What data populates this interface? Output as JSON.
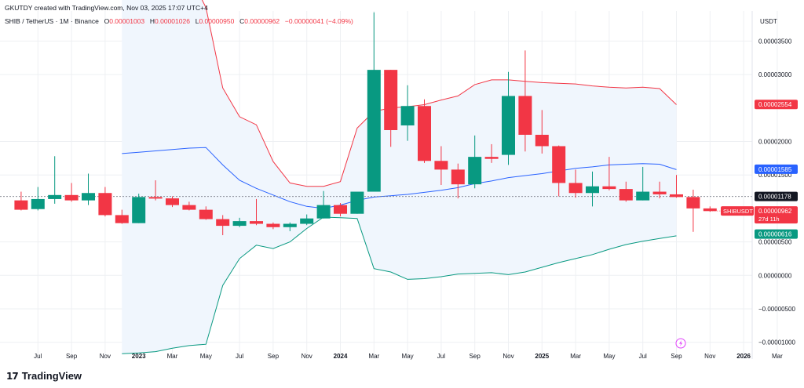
{
  "header": {
    "credit": "GKUTDY created with TradingView.com, Nov 03, 2025 17:07 UTC+4",
    "symbol": "SHIB / TetherUS · 1M · Binance",
    "o_label": "O",
    "o_value": "0.00001003",
    "h_label": "H",
    "h_value": "0.00001026",
    "l_label": "L",
    "l_value": "0.00000950",
    "c_label": "C",
    "c_value": "0.00000962",
    "change": "−0.00000041 (−4.09%)"
  },
  "brand": {
    "logo": "17",
    "name": "TradingView"
  },
  "event_icon": "lightning-icon",
  "colors": {
    "up": "#089981",
    "down": "#f23645",
    "upper_band": "#f23645",
    "middle_band": "#2962ff",
    "lower_band": "#089981",
    "band_fill": "#f0f6fd",
    "grid": "#eef0f3"
  },
  "chart_data": {
    "type": "candlestick",
    "symbol": "SHIBUSDT",
    "interval": "1M",
    "y_unit": "USDT",
    "ylim": [
      -1.25e-05,
      3.95e-05
    ],
    "y_ticks": [
      {
        "value": 3.5e-05,
        "label": "0.00003500"
      },
      {
        "value": 3e-05,
        "label": "0.00003000"
      },
      {
        "value": 2e-05,
        "label": "0.00002000"
      },
      {
        "value": 1.5e-05,
        "label": "0.00001500"
      },
      {
        "value": 5e-06,
        "label": "0.00000500"
      },
      {
        "value": 0.0,
        "label": "0.00000000"
      },
      {
        "value": -5e-06,
        "label": "−0.00000500"
      },
      {
        "value": -1e-05,
        "label": "−0.00001000"
      }
    ],
    "x_ticks": [
      "Jul",
      "Sep",
      "Nov",
      "2023",
      "Mar",
      "May",
      "Jul",
      "Sep",
      "Nov",
      "2024",
      "Mar",
      "May",
      "Jul",
      "Sep",
      "Nov",
      "2025",
      "Mar",
      "May",
      "Jul",
      "Sep",
      "Nov",
      "2026",
      "Mar"
    ],
    "x_tick_months": [
      1,
      3,
      5,
      7,
      9,
      11,
      13,
      15,
      17,
      19,
      21,
      23,
      25,
      27,
      29,
      31,
      33,
      35,
      37,
      39,
      41,
      43,
      45
    ],
    "bold_x_ticks": [
      "2023",
      "2024",
      "2025",
      "2026"
    ],
    "grid": true,
    "candles": [
      {
        "date": "2022-06",
        "o": 1.12e-05,
        "h": 1.25e-05,
        "l": 9.7e-06,
        "c": 9.8e-06
      },
      {
        "date": "2022-07",
        "o": 9.9e-06,
        "h": 1.32e-05,
        "l": 9.7e-06,
        "c": 1.14e-05
      },
      {
        "date": "2022-08",
        "o": 1.14e-05,
        "h": 1.78e-05,
        "l": 1.07e-05,
        "c": 1.2e-05
      },
      {
        "date": "2022-09",
        "o": 1.2e-05,
        "h": 1.38e-05,
        "l": 1.1e-05,
        "c": 1.12e-05
      },
      {
        "date": "2022-10",
        "o": 1.12e-05,
        "h": 1.52e-05,
        "l": 1.05e-05,
        "c": 1.23e-05
      },
      {
        "date": "2022-11",
        "o": 1.23e-05,
        "h": 1.32e-05,
        "l": 8.8e-06,
        "c": 9e-06
      },
      {
        "date": "2022-12",
        "o": 9e-06,
        "h": 9.8e-06,
        "l": 7.7e-06,
        "c": 7.8e-06
      },
      {
        "date": "2023-01",
        "o": 7.8e-06,
        "h": 1.22e-05,
        "l": 7.8e-06,
        "c": 1.17e-05
      },
      {
        "date": "2023-02",
        "o": 1.17e-05,
        "h": 1.42e-05,
        "l": 1.12e-05,
        "c": 1.15e-05
      },
      {
        "date": "2023-03",
        "o": 1.15e-05,
        "h": 1.18e-05,
        "l": 1.02e-05,
        "c": 1.05e-05
      },
      {
        "date": "2023-04",
        "o": 1.05e-05,
        "h": 1.1e-05,
        "l": 9.7e-06,
        "c": 9.8e-06
      },
      {
        "date": "2023-05",
        "o": 9.8e-06,
        "h": 1.03e-05,
        "l": 8.3e-06,
        "c": 8.4e-06
      },
      {
        "date": "2023-06",
        "o": 8.4e-06,
        "h": 9e-06,
        "l": 6e-06,
        "c": 7.4e-06
      },
      {
        "date": "2023-07",
        "o": 7.4e-06,
        "h": 8.6e-06,
        "l": 7.2e-06,
        "c": 8.1e-06
      },
      {
        "date": "2023-08",
        "o": 8.1e-06,
        "h": 1.14e-05,
        "l": 7.5e-06,
        "c": 7.7e-06
      },
      {
        "date": "2023-09",
        "o": 7.7e-06,
        "h": 7.9e-06,
        "l": 6.9e-06,
        "c": 7.2e-06
      },
      {
        "date": "2023-10",
        "o": 7.2e-06,
        "h": 7.9e-06,
        "l": 6.6e-06,
        "c": 7.7e-06
      },
      {
        "date": "2023-11",
        "o": 7.7e-06,
        "h": 9.1e-06,
        "l": 7.5e-06,
        "c": 8.5e-06
      },
      {
        "date": "2023-12",
        "o": 8.5e-06,
        "h": 1.26e-05,
        "l": 8.5e-06,
        "c": 1.05e-05
      },
      {
        "date": "2024-01",
        "o": 1.05e-05,
        "h": 1.08e-05,
        "l": 8.8e-06,
        "c": 9.2e-06
      },
      {
        "date": "2024-02",
        "o": 9.2e-06,
        "h": 1.23e-05,
        "l": 9.2e-06,
        "c": 1.25e-05
      },
      {
        "date": "2024-03",
        "o": 1.25e-05,
        "h": 3.93e-05,
        "l": 1.25e-05,
        "c": 3.07e-05
      },
      {
        "date": "2024-04",
        "o": 3.07e-05,
        "h": 3.07e-05,
        "l": 1.92e-05,
        "c": 2.17e-05
      },
      {
        "date": "2024-05",
        "o": 2.24e-05,
        "h": 2.84e-05,
        "l": 2.01e-05,
        "c": 2.53e-05
      },
      {
        "date": "2024-06",
        "o": 2.53e-05,
        "h": 2.63e-05,
        "l": 1.68e-05,
        "c": 1.71e-05
      },
      {
        "date": "2024-07",
        "o": 1.71e-05,
        "h": 1.93e-05,
        "l": 1.35e-05,
        "c": 1.58e-05
      },
      {
        "date": "2024-08",
        "o": 1.58e-05,
        "h": 1.67e-05,
        "l": 1.15e-05,
        "c": 1.36e-05
      },
      {
        "date": "2024-09",
        "o": 1.36e-05,
        "h": 2.09e-05,
        "l": 1.3e-05,
        "c": 1.77e-05
      },
      {
        "date": "2024-10",
        "o": 1.77e-05,
        "h": 1.96e-05,
        "l": 1.68e-05,
        "c": 1.74e-05
      },
      {
        "date": "2024-11",
        "o": 1.8e-05,
        "h": 3.04e-05,
        "l": 1.65e-05,
        "c": 2.68e-05
      },
      {
        "date": "2024-12",
        "o": 2.68e-05,
        "h": 3.36e-05,
        "l": 1.85e-05,
        "c": 2.1e-05
      },
      {
        "date": "2025-01",
        "o": 2.1e-05,
        "h": 2.47e-05,
        "l": 1.82e-05,
        "c": 1.93e-05
      },
      {
        "date": "2025-02",
        "o": 1.93e-05,
        "h": 1.94e-05,
        "l": 1.18e-05,
        "c": 1.38e-05
      },
      {
        "date": "2025-03",
        "o": 1.38e-05,
        "h": 1.58e-05,
        "l": 1.16e-05,
        "c": 1.23e-05
      },
      {
        "date": "2025-04",
        "o": 1.23e-05,
        "h": 1.55e-05,
        "l": 1.03e-05,
        "c": 1.33e-05
      },
      {
        "date": "2025-05",
        "o": 1.33e-05,
        "h": 1.77e-05,
        "l": 1.27e-05,
        "c": 1.29e-05
      },
      {
        "date": "2025-06",
        "o": 1.29e-05,
        "h": 1.4e-05,
        "l": 1.1e-05,
        "c": 1.12e-05
      },
      {
        "date": "2025-07",
        "o": 1.12e-05,
        "h": 1.62e-05,
        "l": 1.12e-05,
        "c": 1.25e-05
      },
      {
        "date": "2025-08",
        "o": 1.25e-05,
        "h": 1.4e-05,
        "l": 1.15e-05,
        "c": 1.21e-05
      },
      {
        "date": "2025-09",
        "o": 1.21e-05,
        "h": 1.5e-05,
        "l": 1.16e-05,
        "c": 1.17e-05
      },
      {
        "date": "2025-10",
        "o": 1.17e-05,
        "h": 1.28e-05,
        "l": 6.5e-06,
        "c": 1e-05
      },
      {
        "date": "2025-11",
        "o": 1e-05,
        "h": 1.03e-05,
        "l": 9.5e-06,
        "c": 9.6e-06
      }
    ],
    "bollinger": {
      "start_index": 6,
      "upper": [
        6.2e-05,
        6e-05,
        5.8e-05,
        5.1e-05,
        4.5e-05,
        4e-05,
        2.8e-05,
        2.37e-05,
        2.25e-05,
        1.7e-05,
        1.38e-05,
        1.33e-05,
        1.33e-05,
        1.4e-05,
        2.2e-05,
        2.45e-05,
        2.5e-05,
        2.52e-05,
        2.55e-05,
        2.62e-05,
        2.68e-05,
        2.85e-05,
        2.92e-05,
        2.92e-05,
        2.9e-05,
        2.88e-05,
        2.87e-05,
        2.86e-05,
        2.83e-05,
        2.81e-05,
        2.8e-05,
        2.81e-05,
        2.79e-05,
        2.55e-05
      ],
      "middle": [
        1.82e-05,
        1.84e-05,
        1.86e-05,
        1.88e-05,
        1.9e-05,
        1.91e-05,
        1.65e-05,
        1.42e-05,
        1.3e-05,
        1.2e-05,
        1.1e-05,
        1.03e-05,
        1e-05,
        1.05e-05,
        1.12e-05,
        1.17e-05,
        1.19e-05,
        1.21e-05,
        1.24e-05,
        1.27e-05,
        1.31e-05,
        1.37e-05,
        1.41e-05,
        1.46e-05,
        1.49e-05,
        1.52e-05,
        1.56e-05,
        1.6e-05,
        1.62e-05,
        1.65e-05,
        1.66e-05,
        1.67e-05,
        1.66e-05,
        1.58e-05
      ],
      "lower": [
        -1.17e-05,
        -1.16e-05,
        -1.14e-05,
        -1.09e-05,
        -1.05e-05,
        -1.03e-05,
        -1.5e-06,
        2.5e-06,
        4.5e-06,
        4e-06,
        5e-06,
        7e-06,
        8.7e-06,
        8.6e-06,
        8.5e-06,
        1e-06,
        5e-07,
        -6e-07,
        -5e-07,
        -2e-07,
        2e-07,
        3e-07,
        4e-07,
        1e-07,
        5e-07,
        1.2e-06,
        1.9e-06,
        2.5e-06,
        3.1e-06,
        3.9e-06,
        4.6e-06,
        5.1e-06,
        5.5e-06,
        5.9e-06
      ]
    },
    "dashed_line": 1.178e-05,
    "price_labels": [
      {
        "text": "0.00002554",
        "bg": "#f23645",
        "fg": "#ffffff",
        "value": 2.554e-05
      },
      {
        "text": "0.00001585",
        "bg": "#2962ff",
        "fg": "#ffffff",
        "value": 1.585e-05
      },
      {
        "text": "0.00001178",
        "bg": "#131722",
        "fg": "#ffffff",
        "value": 1.178e-05
      },
      {
        "text": "0.00000616",
        "bg": "#089981",
        "fg": "#ffffff",
        "value": 6.16e-06
      }
    ],
    "last_price": {
      "symbol_tag": "SHIBUSDT",
      "value_text": "0.00000962",
      "countdown": "27d 11h",
      "value": 9.62e-06
    }
  }
}
